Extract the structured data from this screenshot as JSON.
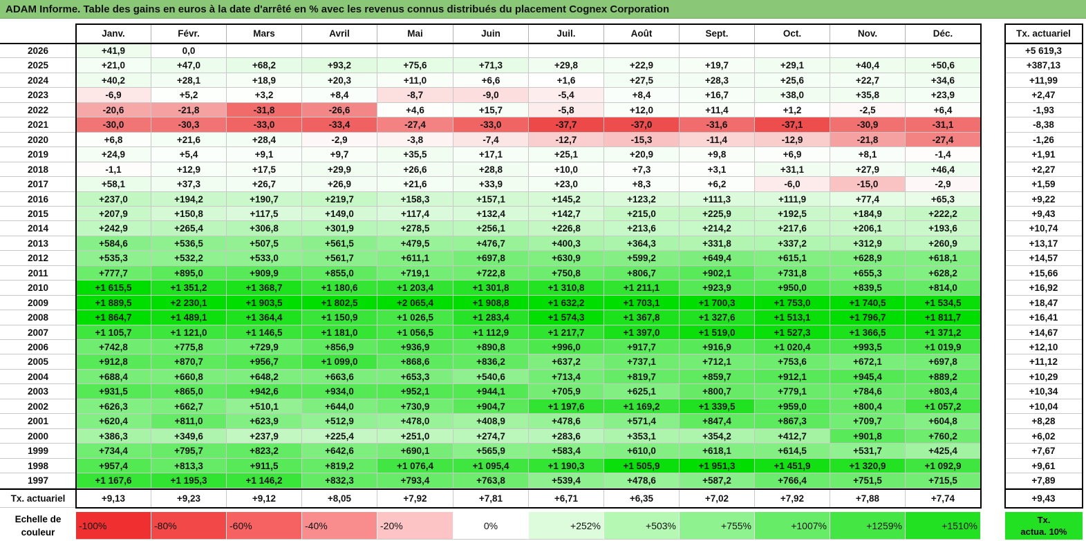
{
  "title": "ADAM Informe. Table des gains en euros à la date d'arrêté en % avec les revenus connus distribués du placement Cognex Corporation",
  "chart_data": {
    "type": "table",
    "months": [
      "Janv.",
      "Févr.",
      "Mars",
      "Avril",
      "Mai",
      "Juin",
      "Juil.",
      "Août",
      "Sept.",
      "Oct.",
      "Nov.",
      "Déc."
    ],
    "tx_header": "Tx. actuariel",
    "rows": [
      {
        "year": "2026",
        "values": [
          "+41,9",
          "0,0",
          "",
          "",
          "",
          "",
          "",
          "",
          "",
          "",
          "",
          ""
        ],
        "tx": "+5 619,3"
      },
      {
        "year": "2025",
        "values": [
          "+21,0",
          "+47,0",
          "+68,2",
          "+93,2",
          "+75,6",
          "+71,3",
          "+29,8",
          "+22,9",
          "+19,7",
          "+29,1",
          "+40,4",
          "+50,6"
        ],
        "tx": "+387,13"
      },
      {
        "year": "2024",
        "values": [
          "+40,2",
          "+28,1",
          "+18,9",
          "+20,3",
          "+11,0",
          "+6,6",
          "+1,6",
          "+27,5",
          "+28,3",
          "+25,6",
          "+22,7",
          "+34,6"
        ],
        "tx": "+11,99"
      },
      {
        "year": "2023",
        "values": [
          "-6,9",
          "+5,2",
          "+3,2",
          "+8,4",
          "-8,7",
          "-9,0",
          "-5,4",
          "+8,4",
          "+16,7",
          "+38,0",
          "+35,8",
          "+23,9"
        ],
        "tx": "+2,47"
      },
      {
        "year": "2022",
        "values": [
          "-20,6",
          "-21,8",
          "-31,8",
          "-26,6",
          "+4,6",
          "+15,7",
          "-5,8",
          "+12,0",
          "+11,4",
          "+1,2",
          "-2,5",
          "+6,4"
        ],
        "tx": "-1,93"
      },
      {
        "year": "2021",
        "values": [
          "-30,0",
          "-30,3",
          "-33,0",
          "-33,4",
          "-27,4",
          "-33,0",
          "-37,7",
          "-37,0",
          "-31,6",
          "-37,1",
          "-30,9",
          "-31,1"
        ],
        "tx": "-8,38"
      },
      {
        "year": "2020",
        "values": [
          "+6,8",
          "+21,6",
          "+28,4",
          "-2,9",
          "-3,8",
          "-7,4",
          "-12,7",
          "-15,3",
          "-11,4",
          "-12,9",
          "-21,8",
          "-27,4"
        ],
        "tx": "-1,26"
      },
      {
        "year": "2019",
        "values": [
          "+24,9",
          "+5,4",
          "+9,1",
          "+9,7",
          "+35,5",
          "+17,1",
          "+25,1",
          "+20,9",
          "+9,8",
          "+6,9",
          "+8,1",
          "-1,4"
        ],
        "tx": "+1,91"
      },
      {
        "year": "2018",
        "values": [
          "-1,1",
          "+12,9",
          "+17,5",
          "+29,9",
          "+26,6",
          "+28,8",
          "+10,0",
          "+7,3",
          "+3,1",
          "+31,1",
          "+27,9",
          "+46,4"
        ],
        "tx": "+2,27"
      },
      {
        "year": "2017",
        "values": [
          "+58,1",
          "+37,3",
          "+26,7",
          "+26,9",
          "+21,6",
          "+33,9",
          "+23,0",
          "+8,3",
          "+6,2",
          "-6,0",
          "-15,0",
          "-2,9"
        ],
        "tx": "+1,59"
      },
      {
        "year": "2016",
        "values": [
          "+237,0",
          "+194,2",
          "+190,7",
          "+219,7",
          "+158,3",
          "+157,1",
          "+145,2",
          "+123,2",
          "+111,3",
          "+111,9",
          "+77,4",
          "+65,3"
        ],
        "tx": "+9,22"
      },
      {
        "year": "2015",
        "values": [
          "+207,9",
          "+150,8",
          "+117,5",
          "+149,0",
          "+117,4",
          "+132,4",
          "+142,7",
          "+215,0",
          "+225,9",
          "+192,5",
          "+184,9",
          "+222,2"
        ],
        "tx": "+9,43"
      },
      {
        "year": "2014",
        "values": [
          "+242,9",
          "+265,4",
          "+306,8",
          "+301,9",
          "+278,5",
          "+256,1",
          "+226,8",
          "+213,6",
          "+214,2",
          "+217,6",
          "+206,1",
          "+193,6"
        ],
        "tx": "+10,74"
      },
      {
        "year": "2013",
        "values": [
          "+584,6",
          "+536,5",
          "+507,5",
          "+561,5",
          "+479,5",
          "+476,7",
          "+400,3",
          "+364,3",
          "+331,8",
          "+337,2",
          "+312,9",
          "+260,9"
        ],
        "tx": "+13,17"
      },
      {
        "year": "2012",
        "values": [
          "+535,3",
          "+532,2",
          "+533,0",
          "+561,7",
          "+611,1",
          "+697,8",
          "+630,9",
          "+599,2",
          "+649,4",
          "+615,1",
          "+628,9",
          "+618,1"
        ],
        "tx": "+14,57"
      },
      {
        "year": "2011",
        "values": [
          "+777,7",
          "+895,0",
          "+909,9",
          "+855,0",
          "+719,1",
          "+722,8",
          "+750,8",
          "+806,7",
          "+902,1",
          "+731,8",
          "+655,3",
          "+628,2"
        ],
        "tx": "+15,66"
      },
      {
        "year": "2010",
        "values": [
          "+1 615,5",
          "+1 351,2",
          "+1 368,7",
          "+1 180,6",
          "+1 203,4",
          "+1 301,8",
          "+1 310,8",
          "+1 211,1",
          "+923,9",
          "+950,0",
          "+839,5",
          "+814,0"
        ],
        "tx": "+16,92"
      },
      {
        "year": "2009",
        "values": [
          "+1 889,5",
          "+2 230,1",
          "+1 903,5",
          "+1 802,5",
          "+2 065,4",
          "+1 908,8",
          "+1 632,2",
          "+1 703,1",
          "+1 700,3",
          "+1 753,0",
          "+1 740,5",
          "+1 534,5"
        ],
        "tx": "+18,47"
      },
      {
        "year": "2008",
        "values": [
          "+1 864,7",
          "+1 489,1",
          "+1 364,4",
          "+1 150,9",
          "+1 026,5",
          "+1 283,4",
          "+1 574,3",
          "+1 367,8",
          "+1 327,6",
          "+1 513,1",
          "+1 796,7",
          "+1 811,7"
        ],
        "tx": "+16,41"
      },
      {
        "year": "2007",
        "values": [
          "+1 105,7",
          "+1 121,0",
          "+1 146,5",
          "+1 181,0",
          "+1 056,5",
          "+1 112,9",
          "+1 217,7",
          "+1 397,0",
          "+1 519,0",
          "+1 527,3",
          "+1 366,5",
          "+1 371,2"
        ],
        "tx": "+14,67"
      },
      {
        "year": "2006",
        "values": [
          "+742,8",
          "+775,8",
          "+729,9",
          "+856,9",
          "+936,9",
          "+890,8",
          "+996,0",
          "+917,7",
          "+916,9",
          "+1 020,4",
          "+993,5",
          "+1 019,9"
        ],
        "tx": "+12,10"
      },
      {
        "year": "2005",
        "values": [
          "+912,8",
          "+870,7",
          "+956,7",
          "+1 099,0",
          "+868,6",
          "+836,2",
          "+637,2",
          "+737,1",
          "+712,1",
          "+753,6",
          "+672,1",
          "+697,8"
        ],
        "tx": "+11,12"
      },
      {
        "year": "2004",
        "values": [
          "+688,4",
          "+660,8",
          "+648,2",
          "+663,6",
          "+653,3",
          "+540,6",
          "+713,4",
          "+819,7",
          "+859,7",
          "+912,1",
          "+945,4",
          "+889,2"
        ],
        "tx": "+10,29"
      },
      {
        "year": "2003",
        "values": [
          "+931,5",
          "+865,0",
          "+942,6",
          "+934,0",
          "+952,1",
          "+944,1",
          "+705,9",
          "+625,1",
          "+800,7",
          "+779,1",
          "+784,6",
          "+803,4"
        ],
        "tx": "+10,34"
      },
      {
        "year": "2002",
        "values": [
          "+626,3",
          "+662,7",
          "+510,1",
          "+644,0",
          "+730,9",
          "+904,7",
          "+1 197,6",
          "+1 169,2",
          "+1 339,5",
          "+959,0",
          "+800,4",
          "+1 057,2"
        ],
        "tx": "+10,04"
      },
      {
        "year": "2001",
        "values": [
          "+620,4",
          "+811,0",
          "+623,9",
          "+512,9",
          "+478,0",
          "+408,9",
          "+478,6",
          "+571,4",
          "+847,4",
          "+867,3",
          "+709,7",
          "+604,8"
        ],
        "tx": "+8,28"
      },
      {
        "year": "2000",
        "values": [
          "+386,3",
          "+349,6",
          "+237,9",
          "+225,4",
          "+251,0",
          "+274,7",
          "+283,6",
          "+353,1",
          "+354,2",
          "+412,7",
          "+901,8",
          "+760,2"
        ],
        "tx": "+6,02"
      },
      {
        "year": "1999",
        "values": [
          "+734,4",
          "+795,7",
          "+823,2",
          "+642,6",
          "+690,1",
          "+565,9",
          "+583,4",
          "+610,0",
          "+618,1",
          "+614,5",
          "+531,7",
          "+425,4"
        ],
        "tx": "+7,67"
      },
      {
        "year": "1998",
        "values": [
          "+957,4",
          "+813,3",
          "+911,5",
          "+819,2",
          "+1 076,4",
          "+1 095,4",
          "+1 190,3",
          "+1 505,9",
          "+1 951,3",
          "+1 451,9",
          "+1 320,9",
          "+1 092,9"
        ],
        "tx": "+9,61"
      },
      {
        "year": "1997",
        "values": [
          "+1 167,6",
          "+1 195,3",
          "+1 146,2",
          "+832,3",
          "+793,4",
          "+763,8",
          "+539,4",
          "+478,6",
          "+587,2",
          "+766,4",
          "+751,5",
          "+715,5"
        ],
        "tx": "+7,89"
      }
    ],
    "tx_row": {
      "label": "Tx. actuariel",
      "values": [
        "+9,13",
        "+9,23",
        "+9,12",
        "+8,05",
        "+7,92",
        "+7,81",
        "+6,71",
        "+6,35",
        "+7,02",
        "+7,92",
        "+7,88",
        "+7,74"
      ],
      "tx": "+9,43"
    },
    "scale": {
      "label_line1": "Echelle de",
      "label_line2": "couleur",
      "items": [
        {
          "label": "-100%",
          "color": "#f03030"
        },
        {
          "label": "-80%",
          "color": "#f34848"
        },
        {
          "label": "-60%",
          "color": "#f66262"
        },
        {
          "label": "-40%",
          "color": "#f98c8c"
        },
        {
          "label": "-20%",
          "color": "#fcc4c4"
        },
        {
          "label": "0%",
          "color": "#ffffff"
        },
        {
          "label": "+252%",
          "color": "#dcfcdc"
        },
        {
          "label": "+503%",
          "color": "#b4f8b4"
        },
        {
          "label": "+755%",
          "color": "#8ef28e"
        },
        {
          "label": "+1007%",
          "color": "#66ec66"
        },
        {
          "label": "+1259%",
          "color": "#44e644"
        },
        {
          "label": "+1510%",
          "color": "#22e022"
        }
      ],
      "tx_legend_line1": "Tx.",
      "tx_legend_line2": "actua. 10%",
      "tx_legend_color": "#22e022"
    }
  }
}
